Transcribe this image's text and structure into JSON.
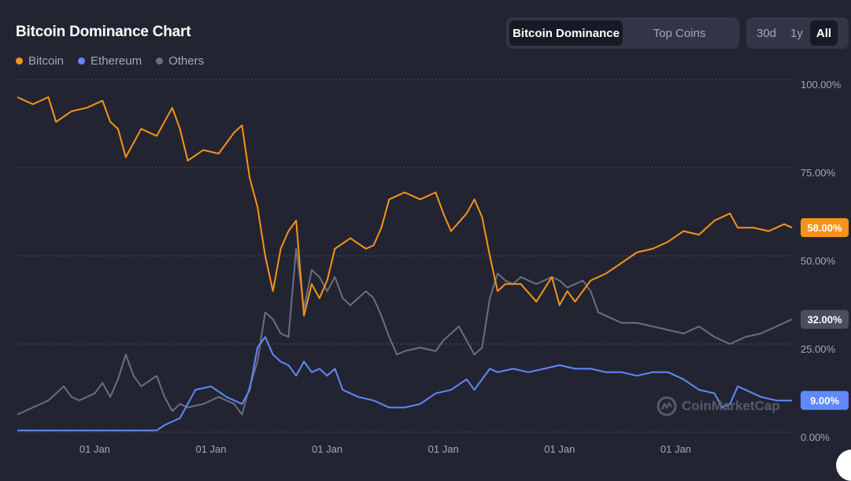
{
  "header": {
    "title": "Bitcoin Dominance Chart",
    "tabs": [
      {
        "label": "Bitcoin Dominance",
        "active": true
      },
      {
        "label": "Top Coins",
        "active": false
      }
    ],
    "ranges": [
      {
        "label": "30d",
        "active": false
      },
      {
        "label": "1y",
        "active": false
      },
      {
        "label": "All",
        "active": true
      }
    ]
  },
  "legend": [
    {
      "label": "Bitcoin",
      "color": "#F7931A"
    },
    {
      "label": "Ethereum",
      "color": "#6188FF"
    },
    {
      "label": "Others",
      "color": "#6B6E7C"
    }
  ],
  "watermark": "CoinMarketCap",
  "chart_data": {
    "type": "line",
    "ylim": [
      0,
      100
    ],
    "y_ticks": [
      "100.00%",
      "75.00%",
      "50.00%",
      "25.00%",
      "0.00%"
    ],
    "y_tick_values": [
      100,
      75,
      50,
      25,
      0
    ],
    "x_ticks": [
      "01 Jan",
      "01 Jan",
      "01 Jan",
      "01 Jan",
      "01 Jan",
      "01 Jan"
    ],
    "x_tick_positions": [
      0.1,
      0.25,
      0.4,
      0.55,
      0.7,
      0.85
    ],
    "grid": true,
    "legend_position": "top-left",
    "current_values": [
      {
        "series": "Bitcoin",
        "label": "58.00%",
        "value": 58,
        "color": "#F7931A"
      },
      {
        "series": "Others",
        "label": "32.00%",
        "value": 32,
        "color": "#4B4E5C"
      },
      {
        "series": "Ethereum",
        "label": "9.00%",
        "value": 9,
        "color": "#6188FF"
      }
    ],
    "series": [
      {
        "name": "Bitcoin",
        "color": "#F7931A",
        "points": [
          [
            0,
            95
          ],
          [
            0.02,
            93
          ],
          [
            0.04,
            95
          ],
          [
            0.05,
            88
          ],
          [
            0.07,
            91
          ],
          [
            0.09,
            92
          ],
          [
            0.11,
            94
          ],
          [
            0.12,
            88
          ],
          [
            0.13,
            86
          ],
          [
            0.14,
            78
          ],
          [
            0.16,
            86
          ],
          [
            0.18,
            84
          ],
          [
            0.2,
            92
          ],
          [
            0.21,
            86
          ],
          [
            0.22,
            77
          ],
          [
            0.24,
            80
          ],
          [
            0.26,
            79
          ],
          [
            0.28,
            85
          ],
          [
            0.29,
            87
          ],
          [
            0.3,
            72
          ],
          [
            0.31,
            64
          ],
          [
            0.32,
            50
          ],
          [
            0.33,
            40
          ],
          [
            0.34,
            52
          ],
          [
            0.35,
            57
          ],
          [
            0.36,
            60
          ],
          [
            0.37,
            33
          ],
          [
            0.38,
            42
          ],
          [
            0.39,
            38
          ],
          [
            0.4,
            43
          ],
          [
            0.41,
            52
          ],
          [
            0.43,
            55
          ],
          [
            0.45,
            52
          ],
          [
            0.46,
            53
          ],
          [
            0.47,
            58
          ],
          [
            0.48,
            66
          ],
          [
            0.5,
            68
          ],
          [
            0.52,
            66
          ],
          [
            0.54,
            68
          ],
          [
            0.55,
            62
          ],
          [
            0.56,
            57
          ],
          [
            0.58,
            62
          ],
          [
            0.59,
            66
          ],
          [
            0.6,
            61
          ],
          [
            0.61,
            50
          ],
          [
            0.62,
            40
          ],
          [
            0.63,
            42
          ],
          [
            0.65,
            42
          ],
          [
            0.67,
            37
          ],
          [
            0.69,
            44
          ],
          [
            0.7,
            36
          ],
          [
            0.71,
            40
          ],
          [
            0.72,
            37
          ],
          [
            0.74,
            43
          ],
          [
            0.76,
            45
          ],
          [
            0.78,
            48
          ],
          [
            0.8,
            51
          ],
          [
            0.82,
            52
          ],
          [
            0.84,
            54
          ],
          [
            0.86,
            57
          ],
          [
            0.88,
            56
          ],
          [
            0.9,
            60
          ],
          [
            0.92,
            62
          ],
          [
            0.93,
            58
          ],
          [
            0.95,
            58
          ],
          [
            0.97,
            57
          ],
          [
            0.98,
            58
          ],
          [
            0.99,
            59
          ],
          [
            1,
            58
          ]
        ]
      },
      {
        "name": "Ethereum",
        "color": "#6188FF",
        "points": [
          [
            0,
            0.5
          ],
          [
            0.05,
            0.5
          ],
          [
            0.1,
            0.5
          ],
          [
            0.15,
            0.5
          ],
          [
            0.18,
            0.5
          ],
          [
            0.19,
            2
          ],
          [
            0.21,
            4
          ],
          [
            0.23,
            12
          ],
          [
            0.25,
            13
          ],
          [
            0.27,
            10
          ],
          [
            0.29,
            8
          ],
          [
            0.3,
            12
          ],
          [
            0.31,
            24
          ],
          [
            0.32,
            27
          ],
          [
            0.33,
            22
          ],
          [
            0.34,
            20
          ],
          [
            0.35,
            19
          ],
          [
            0.36,
            16
          ],
          [
            0.37,
            20
          ],
          [
            0.38,
            17
          ],
          [
            0.39,
            18
          ],
          [
            0.4,
            16
          ],
          [
            0.41,
            18
          ],
          [
            0.42,
            12
          ],
          [
            0.44,
            10
          ],
          [
            0.46,
            9
          ],
          [
            0.48,
            7
          ],
          [
            0.5,
            7
          ],
          [
            0.52,
            8
          ],
          [
            0.54,
            11
          ],
          [
            0.56,
            12
          ],
          [
            0.58,
            15
          ],
          [
            0.59,
            12
          ],
          [
            0.6,
            15
          ],
          [
            0.61,
            18
          ],
          [
            0.62,
            17
          ],
          [
            0.64,
            18
          ],
          [
            0.66,
            17
          ],
          [
            0.68,
            18
          ],
          [
            0.7,
            19
          ],
          [
            0.72,
            18
          ],
          [
            0.74,
            18
          ],
          [
            0.76,
            17
          ],
          [
            0.78,
            17
          ],
          [
            0.8,
            16
          ],
          [
            0.82,
            17
          ],
          [
            0.84,
            17
          ],
          [
            0.86,
            15
          ],
          [
            0.88,
            12
          ],
          [
            0.9,
            11
          ],
          [
            0.91,
            7
          ],
          [
            0.92,
            8
          ],
          [
            0.93,
            13
          ],
          [
            0.94,
            12
          ],
          [
            0.96,
            10
          ],
          [
            0.98,
            9
          ],
          [
            1,
            9
          ]
        ]
      },
      {
        "name": "Others",
        "color": "#6B6E7C",
        "points": [
          [
            0,
            5
          ],
          [
            0.02,
            7
          ],
          [
            0.04,
            9
          ],
          [
            0.05,
            11
          ],
          [
            0.06,
            13
          ],
          [
            0.07,
            10
          ],
          [
            0.08,
            9
          ],
          [
            0.1,
            11
          ],
          [
            0.11,
            14
          ],
          [
            0.12,
            10
          ],
          [
            0.13,
            15
          ],
          [
            0.14,
            22
          ],
          [
            0.15,
            16
          ],
          [
            0.16,
            13
          ],
          [
            0.18,
            16
          ],
          [
            0.19,
            10
          ],
          [
            0.2,
            6
          ],
          [
            0.21,
            8
          ],
          [
            0.22,
            7
          ],
          [
            0.24,
            8
          ],
          [
            0.26,
            10
          ],
          [
            0.28,
            8
          ],
          [
            0.29,
            5
          ],
          [
            0.3,
            13
          ],
          [
            0.31,
            20
          ],
          [
            0.32,
            34
          ],
          [
            0.33,
            32
          ],
          [
            0.34,
            28
          ],
          [
            0.35,
            27
          ],
          [
            0.36,
            52
          ],
          [
            0.37,
            35
          ],
          [
            0.38,
            46
          ],
          [
            0.39,
            44
          ],
          [
            0.4,
            40
          ],
          [
            0.41,
            44
          ],
          [
            0.42,
            38
          ],
          [
            0.43,
            36
          ],
          [
            0.44,
            38
          ],
          [
            0.45,
            40
          ],
          [
            0.46,
            38
          ],
          [
            0.47,
            33
          ],
          [
            0.48,
            27
          ],
          [
            0.49,
            22
          ],
          [
            0.5,
            23
          ],
          [
            0.52,
            24
          ],
          [
            0.54,
            23
          ],
          [
            0.55,
            26
          ],
          [
            0.56,
            28
          ],
          [
            0.57,
            30
          ],
          [
            0.58,
            26
          ],
          [
            0.59,
            22
          ],
          [
            0.6,
            24
          ],
          [
            0.61,
            38
          ],
          [
            0.62,
            45
          ],
          [
            0.63,
            43
          ],
          [
            0.64,
            42
          ],
          [
            0.65,
            44
          ],
          [
            0.67,
            42
          ],
          [
            0.69,
            44
          ],
          [
            0.7,
            43
          ],
          [
            0.71,
            41
          ],
          [
            0.72,
            42
          ],
          [
            0.73,
            43
          ],
          [
            0.74,
            40
          ],
          [
            0.75,
            34
          ],
          [
            0.76,
            33
          ],
          [
            0.78,
            31
          ],
          [
            0.8,
            31
          ],
          [
            0.82,
            30
          ],
          [
            0.84,
            29
          ],
          [
            0.86,
            28
          ],
          [
            0.88,
            30
          ],
          [
            0.9,
            27
          ],
          [
            0.92,
            25
          ],
          [
            0.94,
            27
          ],
          [
            0.96,
            28
          ],
          [
            0.98,
            30
          ],
          [
            1,
            32
          ]
        ]
      }
    ]
  }
}
